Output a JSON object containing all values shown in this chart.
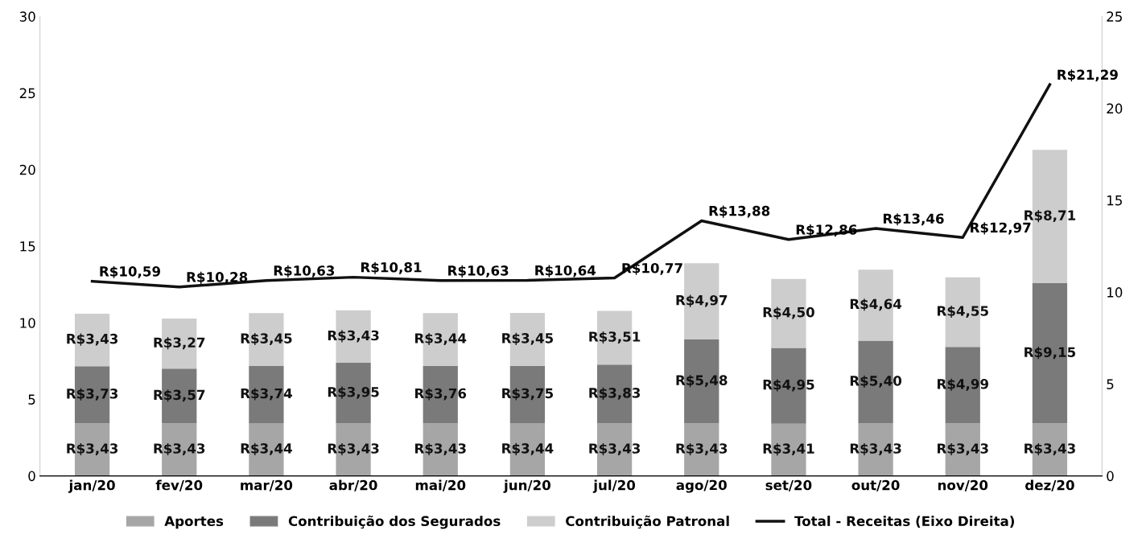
{
  "chart_data": {
    "type": "bar",
    "stacked": true,
    "categories": [
      "jan/20",
      "fev/20",
      "mar/20",
      "abr/20",
      "mai/20",
      "jun/20",
      "jul/20",
      "ago/20",
      "set/20",
      "out/20",
      "nov/20",
      "dez/20"
    ],
    "series": [
      {
        "name": "Aportes",
        "color": "#a6a6a6",
        "values": [
          3.43,
          3.43,
          3.44,
          3.43,
          3.43,
          3.44,
          3.43,
          3.43,
          3.41,
          3.43,
          3.43,
          3.43
        ],
        "value_labels": [
          "R$3,43",
          "R$3,43",
          "R$3,44",
          "R$3,43",
          "R$3,43",
          "R$3,44",
          "R$3,43",
          "R$3,43",
          "R$3,41",
          "R$3,43",
          "R$3,43",
          "R$3,43"
        ]
      },
      {
        "name": "Contribuição dos Segurados",
        "color": "#7a7a7a",
        "values": [
          3.73,
          3.57,
          3.74,
          3.95,
          3.76,
          3.75,
          3.83,
          5.48,
          4.95,
          5.4,
          4.99,
          9.15
        ],
        "value_labels": [
          "R$3,73",
          "R$3,57",
          "R$3,74",
          "R$3,95",
          "R$3,76",
          "R$3,75",
          "R$3,83",
          "R$5,48",
          "R$4,95",
          "R$5,40",
          "R$4,99",
          "R$9,15"
        ]
      },
      {
        "name": "Contribuição Patronal",
        "color": "#cdcdcd",
        "values": [
          3.43,
          3.27,
          3.45,
          3.43,
          3.44,
          3.45,
          3.51,
          4.97,
          4.5,
          4.64,
          4.55,
          8.71
        ],
        "value_labels": [
          "R$3,43",
          "R$3,27",
          "R$3,45",
          "R$3,43",
          "R$3,44",
          "R$3,45",
          "R$3,51",
          "R$4,97",
          "R$4,50",
          "R$4,64",
          "R$4,55",
          "R$8,71"
        ]
      },
      {
        "name": "Total - Receitas (Eixo Direita)",
        "type": "line",
        "axis": "y2",
        "color": "#111111",
        "values": [
          10.59,
          10.28,
          10.63,
          10.81,
          10.63,
          10.64,
          10.77,
          13.88,
          12.86,
          13.46,
          12.97,
          21.29
        ],
        "value_labels": [
          "R$10,59",
          "R$10,28",
          "R$10,63",
          "R$10,81",
          "R$10,63",
          "R$10,64",
          "R$10,77",
          "R$13,88",
          "R$12,86",
          "R$13,46",
          "R$12,97",
          "R$21,29"
        ]
      }
    ],
    "ylim": [
      0,
      30
    ],
    "yticks": [
      0,
      5,
      10,
      15,
      20,
      25,
      30
    ],
    "y2lim": [
      0,
      25
    ],
    "y2ticks": [
      0,
      5,
      10,
      15,
      20,
      25
    ],
    "grid": false,
    "legend": "bottom",
    "marker": "none",
    "line_style": "solid"
  }
}
